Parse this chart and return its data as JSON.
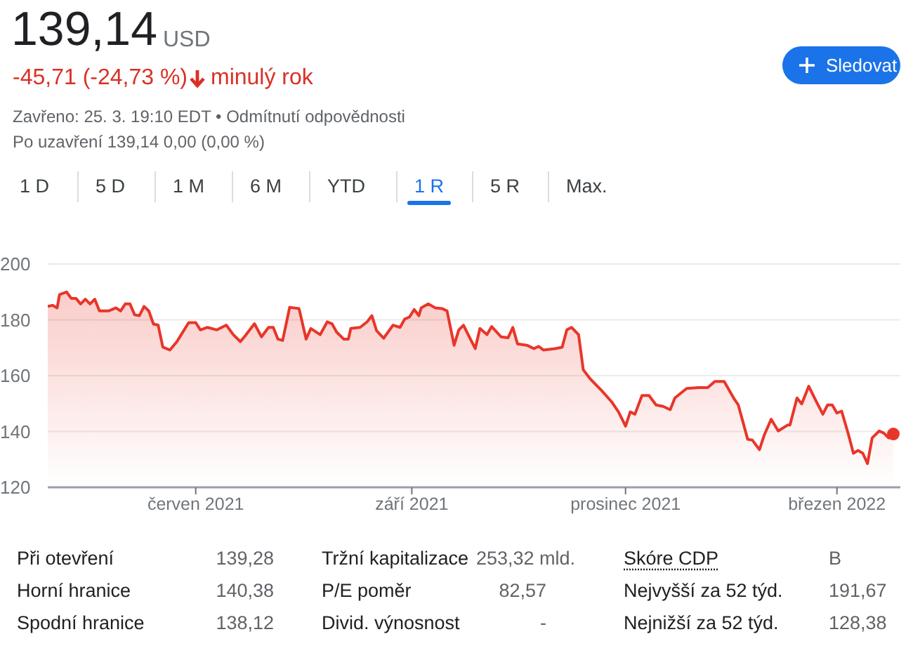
{
  "chart_data": {
    "type": "area",
    "title": "139,14",
    "annotations": [
      "USD",
      "-45,71 (-24,73 %)",
      "minulý rok",
      "Zavřeno: 25. 3. 19:10 EDT • Odmítnutí odpovědnosti",
      "Po uzavření 139,14 0,00 (0,00 %)",
      "Sledovat",
      "1 D",
      "5 D",
      "1 M",
      "6 M",
      "YTD",
      "1 R",
      "5 R",
      "Max.",
      "Při otevření",
      "139,28",
      "Tržní kapitalizace",
      "253,32 mld.",
      "Skóre CDP",
      "B",
      "Horní hranice",
      "140,38",
      "P/E poměr",
      "82,57",
      "Nejvyšší za 52 týd.",
      "191,67",
      "Spodní hranice",
      "138,12",
      "Divid. výnosnost",
      "-",
      "Nejnižší za 52 týd.",
      "128,38"
    ],
    "x": [
      "2021-03-30",
      "2021-04-01",
      "2021-04-03",
      "2021-04-04",
      "2021-04-07",
      "2021-04-09",
      "2021-04-11",
      "2021-04-13",
      "2021-04-15",
      "2021-04-17",
      "2021-04-19",
      "2021-04-21",
      "2021-04-25",
      "2021-04-28",
      "2021-04-30",
      "2021-05-02",
      "2021-05-04",
      "2021-05-06",
      "2021-05-08",
      "2021-05-10",
      "2021-05-12",
      "2021-05-14",
      "2021-05-16",
      "2021-05-18",
      "2021-05-21",
      "2021-05-24",
      "2021-05-27",
      "2021-05-29",
      "2021-06-01",
      "2021-06-03",
      "2021-06-06",
      "2021-06-10",
      "2021-06-14",
      "2021-06-17",
      "2021-06-20",
      "2021-06-22",
      "2021-06-26",
      "2021-06-29",
      "2021-07-02",
      "2021-07-04",
      "2021-07-06",
      "2021-07-08",
      "2021-07-11",
      "2021-07-15",
      "2021-07-18",
      "2021-07-20",
      "2021-07-24",
      "2021-07-27",
      "2021-07-29",
      "2021-07-31",
      "2021-08-03",
      "2021-08-05",
      "2021-08-06",
      "2021-08-10",
      "2021-08-13",
      "2021-08-15",
      "2021-08-17",
      "2021-08-20",
      "2021-08-24",
      "2021-08-27",
      "2021-08-29",
      "2021-08-31",
      "2021-09-02",
      "2021-09-04",
      "2021-09-05",
      "2021-09-08",
      "2021-09-11",
      "2021-09-14",
      "2021-09-16",
      "2021-09-19",
      "2021-09-21",
      "2021-09-23",
      "2021-09-25",
      "2021-09-28",
      "2021-09-30",
      "2021-10-03",
      "2021-10-05",
      "2021-10-09",
      "2021-10-12",
      "2021-10-14",
      "2021-10-16",
      "2021-10-20",
      "2021-10-23",
      "2021-10-25",
      "2021-10-27",
      "2021-11-01",
      "2021-11-04",
      "2021-11-06",
      "2021-11-08",
      "2021-11-11",
      "2021-11-13",
      "2021-11-16",
      "2021-11-21",
      "2021-11-25",
      "2021-11-28",
      "2021-12-01",
      "2021-12-03",
      "2021-12-05",
      "2021-12-08",
      "2021-12-11",
      "2021-12-14",
      "2021-12-17",
      "2021-12-20",
      "2021-12-22",
      "2021-12-27",
      "2022-01-01",
      "2022-01-05",
      "2022-01-08",
      "2022-01-12",
      "2022-01-16",
      "2022-01-18",
      "2022-01-22",
      "2022-01-24",
      "2022-01-27",
      "2022-01-29",
      "2022-02-01",
      "2022-02-04",
      "2022-02-08",
      "2022-02-09",
      "2022-02-12",
      "2022-02-14",
      "2022-02-17",
      "2022-02-20",
      "2022-02-23",
      "2022-02-25",
      "2022-02-27",
      "2022-03-01",
      "2022-03-03",
      "2022-03-06",
      "2022-03-08",
      "2022-03-10",
      "2022-03-12",
      "2022-03-14",
      "2022-03-16",
      "2022-03-19",
      "2022-03-21",
      "2022-03-23",
      "2022-03-25"
    ],
    "series": [
      {
        "color": "#e8362a",
        "values": [
          184.8,
          185.2,
          184.3,
          189,
          190,
          187.7,
          187.7,
          185.7,
          187.4,
          185.7,
          187.4,
          183.2,
          183.2,
          184.3,
          183.2,
          185.7,
          185.7,
          181.8,
          181.5,
          184.8,
          183.2,
          178.5,
          178.1,
          170.2,
          169.2,
          172.2,
          176.3,
          179,
          179,
          176.4,
          177.3,
          176.4,
          178.1,
          174.7,
          172.2,
          174.2,
          178.6,
          173.9,
          177.3,
          177.3,
          173.1,
          172.6,
          184.5,
          184,
          173.1,
          176.9,
          174.7,
          179.3,
          178.6,
          175.6,
          173.1,
          173.1,
          176.9,
          177.3,
          179.3,
          181.5,
          176.1,
          173.4,
          178.1,
          177.3,
          180.3,
          181,
          183.7,
          181.5,
          184.3,
          185.7,
          184.3,
          184,
          183.2,
          170.9,
          176.4,
          178.1,
          174.7,
          169.7,
          176.9,
          174.7,
          177.6,
          173.9,
          173.6,
          177.3,
          171.4,
          170.9,
          169.7,
          170.5,
          169.2,
          169.7,
          170.2,
          176.4,
          177.3,
          174.7,
          162.1,
          158.8,
          154.5,
          150.7,
          147,
          141.9,
          147,
          146.2,
          152.9,
          152.9,
          149.5,
          149,
          147.8,
          152,
          155.4,
          155.7,
          155.7,
          157.9,
          157.9,
          152,
          149.5,
          137.2,
          136.9,
          133.5,
          138.6,
          144.4,
          140.2,
          142.3,
          142.3,
          152,
          149.9,
          156.2,
          151.1,
          146.2,
          149.5,
          149.5,
          146.6,
          147.3,
          138.6,
          132.2,
          133.2,
          132.2,
          128.5,
          137.7,
          140.2,
          139.4,
          137.7,
          139.1
        ]
      }
    ],
    "xlim": [
      "2021-03-30",
      "2022-03-28"
    ],
    "xticks": [
      {
        "value": "2021-06-01",
        "label": "červen 2021"
      },
      {
        "value": "2021-09-01",
        "label": "září 2021"
      },
      {
        "value": "2021-12-01",
        "label": "prosinec 2021"
      },
      {
        "value": "2022-03-01",
        "label": "březen 2022"
      }
    ],
    "ylim": [
      120,
      200
    ],
    "yticks": [
      120,
      140,
      160,
      180,
      200
    ],
    "grid": "y",
    "legend": false
  }
}
